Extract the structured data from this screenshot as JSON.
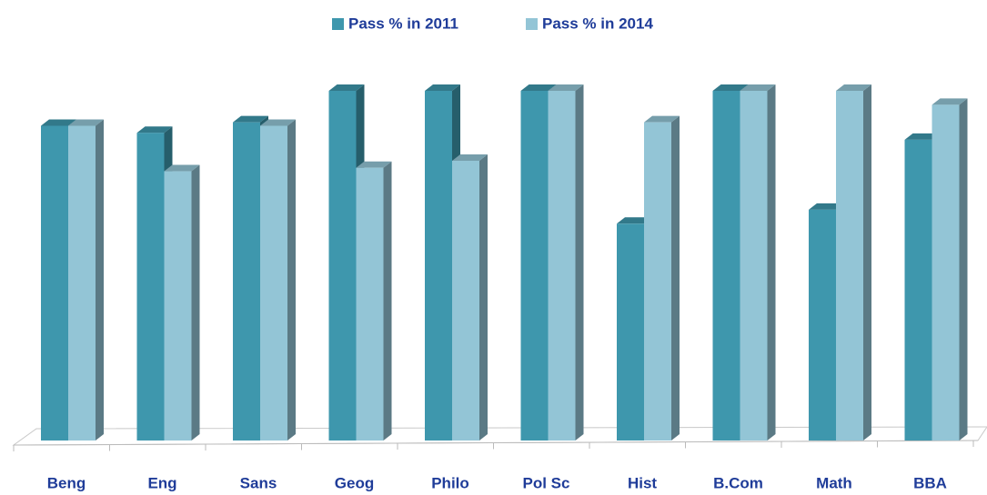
{
  "chart_data": {
    "type": "bar3d",
    "categories": [
      "Beng",
      "Eng",
      "Sans",
      "Geog",
      "Philo",
      "Pol Sc",
      "Hist",
      "B.Com",
      "Math",
      "BBA"
    ],
    "series": [
      {
        "name": "Pass % in 2011",
        "color": "#3e97ad",
        "values": [
          90,
          88,
          91,
          100,
          100,
          100,
          62,
          100,
          66,
          86
        ]
      },
      {
        "name": "Pass % in 2014",
        "color": "#93c5d6",
        "values": [
          90,
          77,
          90,
          78,
          80,
          100,
          91,
          100,
          100,
          96
        ]
      }
    ],
    "ylim": [
      0,
      100
    ],
    "legend": "top"
  }
}
